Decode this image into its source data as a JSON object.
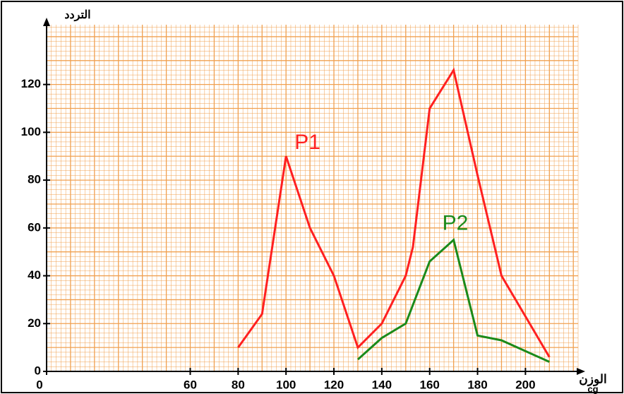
{
  "chart_data": {
    "type": "line",
    "x_label": "الوزن",
    "x_unit": "cg",
    "y_label": "التردد",
    "xlim": [
      0,
      222
    ],
    "ylim": [
      0,
      145
    ],
    "xticks": [
      0,
      60,
      80,
      100,
      120,
      140,
      160,
      180,
      200
    ],
    "yticks": [
      0,
      20,
      40,
      60,
      80,
      100,
      120
    ],
    "grid": true,
    "grid_color": "#f0a050",
    "series": [
      {
        "name": "P1",
        "color": "#ff2020",
        "x": [
          80,
          90,
          100,
          110,
          120,
          130,
          140,
          150,
          153,
          160,
          170,
          180,
          190,
          210
        ],
        "values": [
          10,
          24,
          90,
          60,
          40,
          10,
          20,
          40,
          52,
          110,
          126,
          82,
          40,
          6
        ]
      },
      {
        "name": "P2",
        "color": "#1a8a1a",
        "x": [
          130,
          140,
          150,
          160,
          170,
          180,
          190,
          210
        ],
        "values": [
          5,
          14,
          20,
          46,
          55,
          15,
          13,
          4
        ]
      }
    ]
  }
}
